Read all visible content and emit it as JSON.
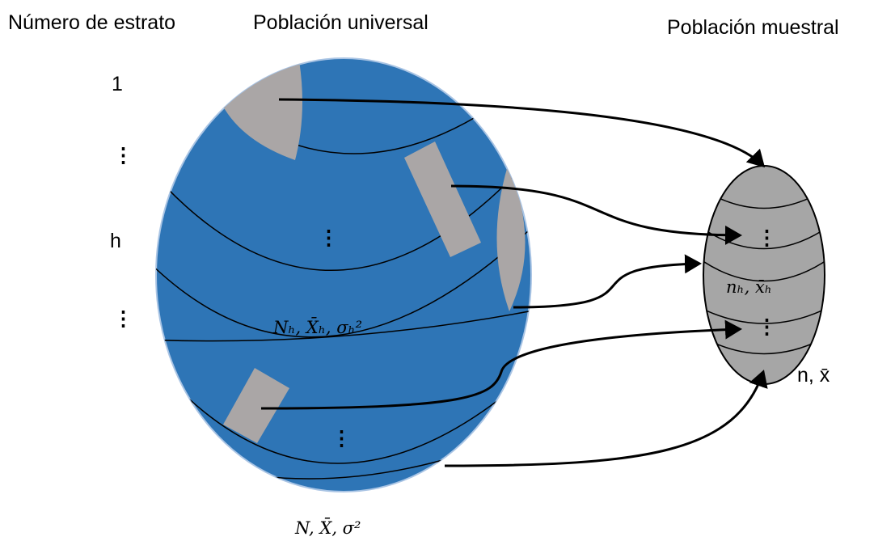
{
  "header": {
    "stratum_number": "Número de estrato",
    "universal_population": "Población universal",
    "sample_population": "Población muestral"
  },
  "strata_labels": [
    "1",
    "⋮",
    "h",
    "⋮"
  ],
  "universal": {
    "dots": [
      "⋮",
      "⋮"
    ],
    "stratum_stats": "Nₕ, X̄ₕ, σₕ²",
    "total_stats": "N, X̄, σ²"
  },
  "sample": {
    "dots": [
      "⋮",
      "⋮"
    ],
    "stratum_stats": "nₕ, x̄ₕ",
    "total_stats": "n, x̄"
  }
}
